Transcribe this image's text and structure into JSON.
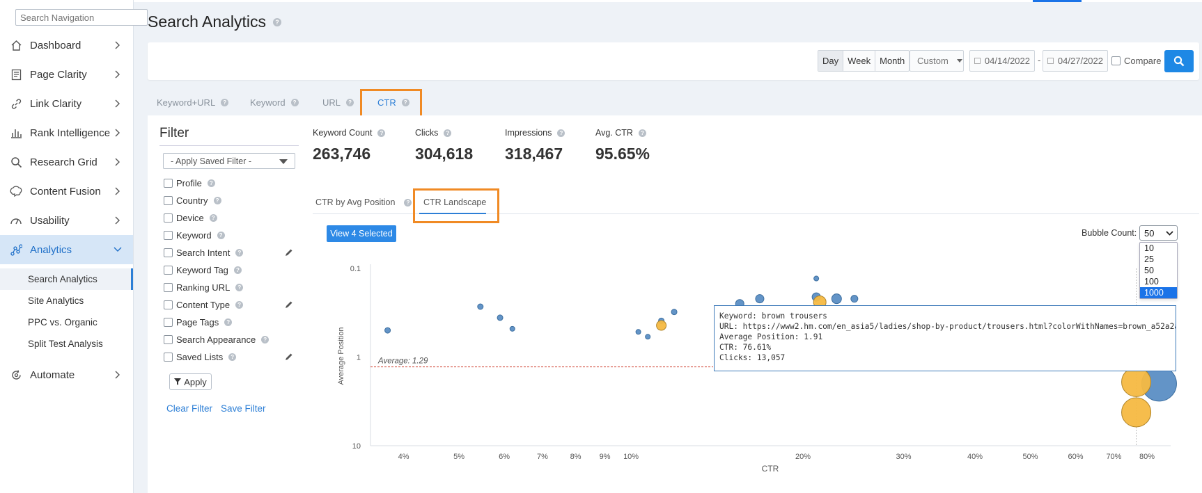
{
  "sidebar": {
    "search_placeholder": "Search Navigation",
    "items": [
      {
        "label": "Dashboard",
        "icon": "home-icon"
      },
      {
        "label": "Page Clarity",
        "icon": "document-icon"
      },
      {
        "label": "Link Clarity",
        "icon": "link-icon"
      },
      {
        "label": "Rank Intelligence",
        "icon": "bar-chart-icon"
      },
      {
        "label": "Research Grid",
        "icon": "search-icon"
      },
      {
        "label": "Content Fusion",
        "icon": "brain-icon"
      },
      {
        "label": "Usability",
        "icon": "gauge-icon"
      },
      {
        "label": "Analytics",
        "icon": "analytics-icon"
      },
      {
        "label": "Automate",
        "icon": "automate-icon"
      }
    ],
    "analytics_sub": [
      "Search Analytics",
      "Site Analytics",
      "PPC vs. Organic",
      "Split Test Analysis"
    ]
  },
  "header": {
    "title": "Search Analytics"
  },
  "toolbar": {
    "periods": [
      "Day",
      "Week",
      "Month"
    ],
    "range": "Custom",
    "date_from": "04/14/2022",
    "date_to": "04/27/2022",
    "separator": "-",
    "compare_label": "Compare"
  },
  "tabs": [
    "Keyword+URL",
    "Keyword",
    "URL",
    "CTR"
  ],
  "filter": {
    "title": "Filter",
    "saved_filter": "- Apply Saved Filter -",
    "options": [
      "Profile",
      "Country",
      "Device",
      "Keyword",
      "Search Intent",
      "Keyword Tag",
      "Ranking URL",
      "Content Type",
      "Page Tags",
      "Search Appearance",
      "Saved Lists"
    ],
    "apply_label": "Apply",
    "clear_label": "Clear Filter",
    "save_label": "Save Filter"
  },
  "stats": [
    {
      "label": "Keyword Count",
      "value": "263,746"
    },
    {
      "label": "Clicks",
      "value": "304,618"
    },
    {
      "label": "Impressions",
      "value": "318,467"
    },
    {
      "label": "Avg. CTR",
      "value": "95.65%"
    }
  ],
  "subtabs": [
    "CTR by Avg Position",
    "CTR Landscape"
  ],
  "view_selected_label": "View 4 Selected",
  "bubble_count": {
    "label": "Bubble Count:",
    "selected": "50",
    "options": [
      "10",
      "25",
      "50",
      "100",
      "1000"
    ],
    "highlighted": "1000"
  },
  "tooltip": {
    "keyword": "Keyword: brown trousers",
    "url": "URL: https://www2.hm.com/en_asia5/ladies/shop-by-product/trousers.html?colorWithNames=brown_a52a2a",
    "avg_position": "Average Position: 1.91",
    "ctr": "CTR: 76.61%",
    "clicks": "Clicks: 13,057"
  },
  "chart_data": {
    "type": "scatter",
    "xlabel": "CTR",
    "ylabel": "Average Position",
    "x_scale": "log",
    "y_scale": "log",
    "x_ticks": [
      "4%",
      "5%",
      "6%",
      "7%",
      "8%",
      "9%",
      "10%",
      "20%",
      "30%",
      "40%",
      "50%",
      "60%",
      "70%",
      "80%"
    ],
    "x_tick_values": [
      4,
      5,
      6,
      7,
      8,
      9,
      10,
      20,
      30,
      40,
      50,
      60,
      70,
      80
    ],
    "y_ticks": [
      "0.1",
      "1",
      "10"
    ],
    "y_tick_values": [
      0.1,
      1,
      10
    ],
    "xlim": [
      3.5,
      88
    ],
    "ylim": [
      0.1,
      10
    ],
    "y_inverted": true,
    "average_line": {
      "label": "Average: 1.29",
      "value": 1.29,
      "color": "#d04030"
    },
    "colors": {
      "blue": "#5b8ec4",
      "orange": "#f5b942"
    },
    "points": [
      {
        "x": 3.75,
        "y": 0.5,
        "size": 4,
        "color": "blue"
      },
      {
        "x": 5.45,
        "y": 0.27,
        "size": 4,
        "color": "blue"
      },
      {
        "x": 5.9,
        "y": 0.36,
        "size": 4,
        "color": "blue"
      },
      {
        "x": 6.2,
        "y": 0.48,
        "size": 3.5,
        "color": "blue"
      },
      {
        "x": 10.3,
        "y": 0.52,
        "size": 3.5,
        "color": "blue"
      },
      {
        "x": 10.7,
        "y": 0.59,
        "size": 3.5,
        "color": "blue"
      },
      {
        "x": 11.3,
        "y": 0.39,
        "size": 4,
        "color": "blue"
      },
      {
        "x": 11.9,
        "y": 0.31,
        "size": 4,
        "color": "blue"
      },
      {
        "x": 11.3,
        "y": 0.44,
        "size": 7,
        "color": "orange"
      },
      {
        "x": 15.5,
        "y": 0.25,
        "size": 6,
        "color": "blue"
      },
      {
        "x": 16.8,
        "y": 0.22,
        "size": 6,
        "color": "blue"
      },
      {
        "x": 18.0,
        "y": 0.37,
        "size": 3.5,
        "color": "blue"
      },
      {
        "x": 21.1,
        "y": 0.13,
        "size": 3.5,
        "color": "blue"
      },
      {
        "x": 21.1,
        "y": 0.21,
        "size": 6,
        "color": "blue"
      },
      {
        "x": 21.4,
        "y": 0.24,
        "size": 9,
        "color": "orange"
      },
      {
        "x": 22.9,
        "y": 0.22,
        "size": 7,
        "color": "blue"
      },
      {
        "x": 24.6,
        "y": 0.22,
        "size": 5,
        "color": "blue"
      },
      {
        "x": 24.1,
        "y": 0.38,
        "size": 3.5,
        "color": "blue"
      },
      {
        "x": 30.4,
        "y": 0.37,
        "size": 6,
        "color": "blue"
      },
      {
        "x": 84.0,
        "y": 2.0,
        "size": 25,
        "color": "blue"
      },
      {
        "x": 76.6,
        "y": 1.91,
        "size": 21,
        "color": "orange"
      },
      {
        "x": 76.6,
        "y": 4.2,
        "size": 21,
        "color": "orange"
      }
    ]
  }
}
